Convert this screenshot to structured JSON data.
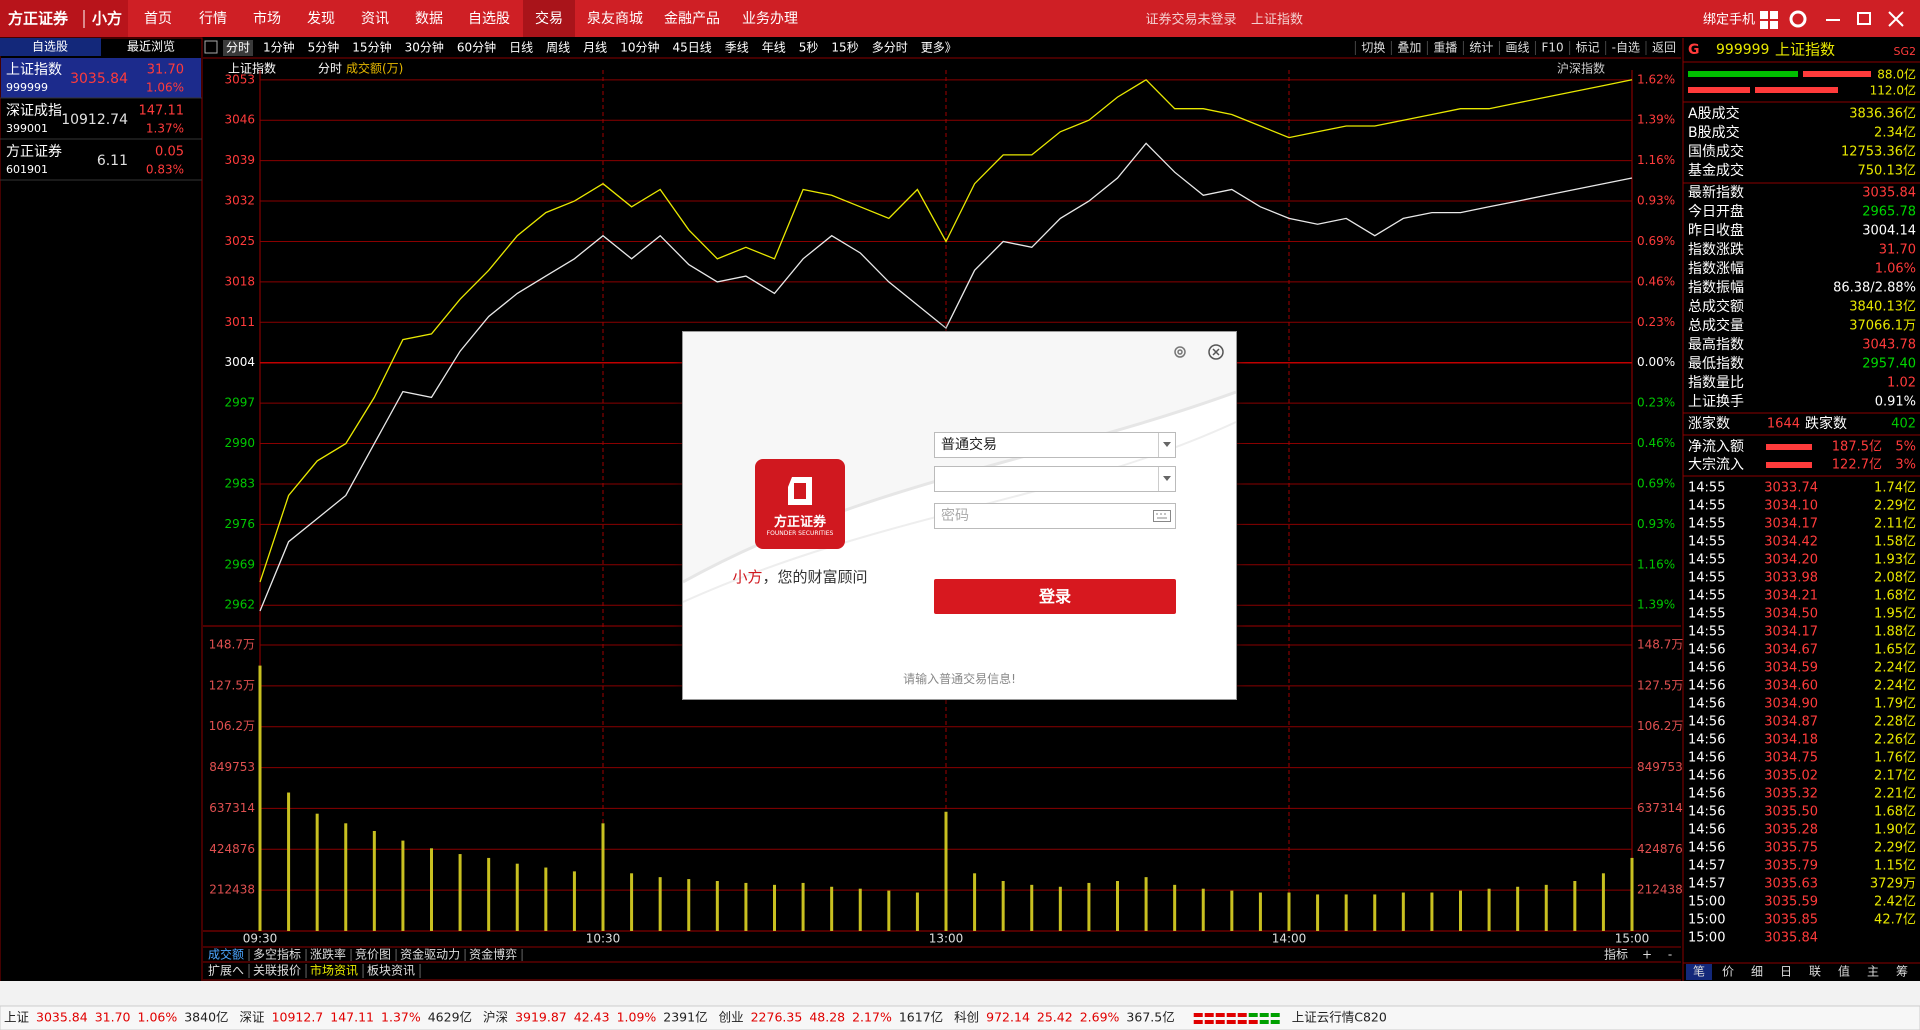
{
  "topbar": {
    "brand": "方正证券",
    "app": "小方",
    "menu": [
      "首页",
      "行情",
      "市场",
      "发现",
      "资讯",
      "数据",
      "自选股",
      "交易",
      "泉友商城",
      "金融产品",
      "业务办理"
    ],
    "login_status": "证券交易未登录",
    "index_name": "上证指数",
    "bind_phone": "绑定手机"
  },
  "watchlist": {
    "tabs": [
      "自选股",
      "最近浏览"
    ],
    "stocks": [
      {
        "name": "上证指数",
        "code": "999999",
        "price": "3035.84",
        "change": "31.70",
        "pct": "1.06%"
      },
      {
        "name": "深证成指",
        "code": "399001",
        "price": "10912.74",
        "change": "147.11",
        "pct": "1.37%"
      },
      {
        "name": "方正证券",
        "code": "601901",
        "price": "6.11",
        "change": "0.05",
        "pct": "0.83%"
      }
    ]
  },
  "toolbar": {
    "periods": [
      "分时",
      "1分钟",
      "5分钟",
      "15分钟",
      "30分钟",
      "60分钟",
      "日线",
      "周线",
      "月线",
      "10分钟",
      "45日线",
      "季线",
      "年线",
      "5秒",
      "15秒",
      "多分时",
      "更多》"
    ],
    "tools": [
      "切换",
      "叠加",
      "重播",
      "统计",
      "画线",
      "F10",
      "标记",
      "-自选",
      "返回"
    ]
  },
  "chart": {
    "index_name": "上证指数",
    "mode": "分时",
    "indicator": "成交额(万)",
    "market": "沪深指数",
    "price_ylim": [
      2958.4,
      3054.7
    ],
    "price_ticks": [
      3053,
      3046,
      3039,
      3032,
      3025,
      3018,
      3011,
      3004,
      2997,
      2990,
      2983,
      2976,
      2969,
      2962
    ],
    "pct_labels": [
      "1.62%",
      "1.39%",
      "1.16%",
      "0.93%",
      "0.69%",
      "0.46%",
      "0.23%",
      "0.00%",
      "0.23%",
      "0.46%",
      "0.69%",
      "0.93%",
      "1.16%",
      "1.39%"
    ],
    "volume_ylim": [
      0,
      1585900
    ],
    "volume_ticks": [
      {
        "value": 1487067,
        "label": "148.7万"
      },
      {
        "value": 1274629,
        "label": "127.5万"
      },
      {
        "value": 1062191,
        "label": "106.2万"
      },
      849753,
      637314,
      424876,
      212438
    ],
    "xlim": [
      0,
      240
    ],
    "time_ticks": [
      {
        "value": 0,
        "label": "09:30"
      },
      {
        "value": 60,
        "label": "10:30"
      },
      {
        "value": 120,
        "label": "13:00"
      },
      {
        "value": 180,
        "label": "14:00"
      },
      {
        "value": 240,
        "label": "15:00"
      }
    ],
    "x": [
      0,
      5,
      10,
      15,
      20,
      25,
      30,
      35,
      40,
      45,
      50,
      55,
      60,
      65,
      70,
      75,
      80,
      85,
      90,
      95,
      100,
      105,
      110,
      115,
      120,
      125,
      130,
      135,
      140,
      145,
      150,
      155,
      160,
      165,
      170,
      175,
      180,
      185,
      190,
      195,
      200,
      205,
      210,
      215,
      220,
      225,
      230,
      235,
      240
    ],
    "price": [
      2961,
      2973,
      2977,
      2981,
      2990,
      2999,
      2998,
      3006,
      3012,
      3016,
      3019,
      3022,
      3026,
      3022,
      3026,
      3021,
      3018,
      3019,
      3016,
      3022,
      3026,
      3023,
      3018,
      3014,
      3010,
      3020,
      3025,
      3024,
      3029,
      3032,
      3036,
      3042,
      3037,
      3033,
      3034,
      3031,
      3029,
      3028,
      3029,
      3026,
      3029,
      3030,
      3030,
      3031,
      3032,
      3033,
      3034,
      3035,
      3036
    ],
    "leading": [
      2966,
      2981,
      2987,
      2990,
      2998,
      3008,
      3009,
      3015,
      3020,
      3026,
      3030,
      3032,
      3035,
      3031,
      3034,
      3027,
      3022,
      3024,
      3022,
      3034,
      3033,
      3031,
      3029,
      3034,
      3025,
      3035,
      3040,
      3040,
      3044,
      3046,
      3050,
      3053,
      3048,
      3048,
      3047,
      3045,
      3043,
      3044,
      3045,
      3045,
      3046,
      3047,
      3048,
      3048,
      3049,
      3050,
      3051,
      3052,
      3053
    ],
    "volume": [
      1380000,
      720000,
      610000,
      560000,
      520000,
      470000,
      430000,
      400000,
      380000,
      350000,
      330000,
      310000,
      560000,
      300000,
      280000,
      270000,
      260000,
      250000,
      240000,
      250000,
      230000,
      220000,
      210000,
      200000,
      620000,
      300000,
      260000,
      240000,
      230000,
      250000,
      260000,
      280000,
      240000,
      220000,
      210000,
      200000,
      200000,
      190000,
      190000,
      190000,
      200000,
      200000,
      210000,
      220000,
      230000,
      240000,
      260000,
      300000,
      380000
    ]
  },
  "chart_tabs": {
    "indicators": [
      "成交额",
      "多空指标",
      "涨跌率",
      "竞价图",
      "资金驱动力",
      "资金博弈"
    ],
    "extras": [
      "扩展へ",
      "关联报价",
      "市场资讯",
      "板块资讯"
    ],
    "controls": [
      "指标",
      "+",
      "-"
    ]
  },
  "quote": {
    "flag": "G",
    "code": "999999",
    "name": "上证指数",
    "tag": "SG2",
    "bar_values": [
      "88.0亿",
      "112.0亿"
    ],
    "turnover": [
      {
        "label": "A股成交",
        "value": "3836.36亿",
        "color": "#e8e800"
      },
      {
        "label": "B股成交",
        "value": "2.34亿",
        "color": "#e8e800"
      },
      {
        "label": "国债成交",
        "value": "12753.36亿",
        "color": "#e8e800"
      },
      {
        "label": "基金成交",
        "value": "750.13亿",
        "color": "#e8e800"
      }
    ],
    "stats": [
      {
        "label": "最新指数",
        "value": "3035.84",
        "color": "#ff3b3b"
      },
      {
        "label": "今日开盘",
        "value": "2965.78",
        "color": "#00d800"
      },
      {
        "label": "昨日收盘",
        "value": "3004.14",
        "color": "#ffffff"
      },
      {
        "label": "指数涨跌",
        "value": "31.70",
        "color": "#ff3b3b"
      },
      {
        "label": "指数涨幅",
        "value": "1.06%",
        "color": "#ff3b3b"
      },
      {
        "label": "指数振幅",
        "value": "86.38/2.88%",
        "color": "#ffffff"
      },
      {
        "label": "总成交额",
        "value": "3840.13亿",
        "color": "#e8e800"
      },
      {
        "label": "总成交量",
        "value": "37066.1万",
        "color": "#e8e800"
      },
      {
        "label": "最高指数",
        "value": "3043.78",
        "color": "#ff3b3b"
      },
      {
        "label": "最低指数",
        "value": "2957.40",
        "color": "#00d800"
      },
      {
        "label": "指数量比",
        "value": "1.02",
        "color": "#ff3b3b"
      },
      {
        "label": "上证换手",
        "value": "0.91%",
        "color": "#ffffff"
      }
    ],
    "breadth": {
      "up_label": "涨家数",
      "up": "1644",
      "down_label": "跌家数",
      "down": "402"
    },
    "flows": [
      {
        "label": "净流入额",
        "value": "187.5亿",
        "pct": "5%"
      },
      {
        "label": "大宗流入",
        "value": "122.7亿",
        "pct": "3%"
      }
    ],
    "ticks": [
      [
        "14:55",
        "3033.74",
        "1.74亿"
      ],
      [
        "14:55",
        "3034.10",
        "2.29亿"
      ],
      [
        "14:55",
        "3034.17",
        "2.11亿"
      ],
      [
        "14:55",
        "3034.42",
        "1.58亿"
      ],
      [
        "14:55",
        "3034.20",
        "1.93亿"
      ],
      [
        "14:55",
        "3033.98",
        "2.08亿"
      ],
      [
        "14:55",
        "3034.21",
        "1.68亿"
      ],
      [
        "14:55",
        "3034.50",
        "1.95亿"
      ],
      [
        "14:55",
        "3034.17",
        "1.88亿"
      ],
      [
        "14:56",
        "3034.67",
        "1.65亿"
      ],
      [
        "14:56",
        "3034.59",
        "2.24亿"
      ],
      [
        "14:56",
        "3034.60",
        "2.24亿"
      ],
      [
        "14:56",
        "3034.90",
        "1.79亿"
      ],
      [
        "14:56",
        "3034.87",
        "2.28亿"
      ],
      [
        "14:56",
        "3034.18",
        "2.26亿"
      ],
      [
        "14:56",
        "3034.75",
        "1.76亿"
      ],
      [
        "14:56",
        "3035.02",
        "2.17亿"
      ],
      [
        "14:56",
        "3035.32",
        "2.21亿"
      ],
      [
        "14:56",
        "3035.50",
        "1.68亿"
      ],
      [
        "14:56",
        "3035.28",
        "1.90亿"
      ],
      [
        "14:56",
        "3035.75",
        "2.29亿"
      ],
      [
        "14:57",
        "3035.79",
        "1.15亿"
      ],
      [
        "14:57",
        "3035.63",
        "3729万"
      ],
      [
        "15:00",
        "3035.59",
        "2.42亿"
      ],
      [
        "15:00",
        "3035.85",
        "42.7亿"
      ],
      [
        "15:00",
        "3035.84"
      ]
    ],
    "tabs": [
      "笔",
      "价",
      "细",
      "日",
      "联",
      "值",
      "主",
      "筹"
    ]
  },
  "dialog": {
    "logo_name": "方正证券",
    "logo_en": "FOUNDER SECURITIES",
    "tagline_name": "小方",
    "tagline_rest": "，您的财富顾问",
    "account_type": "普通交易",
    "password_placeholder": "密码",
    "login": "登录",
    "hint": "请输入普通交易信息!"
  },
  "statusbar": {
    "indices": [
      {
        "name": "上证",
        "price": "3035.84",
        "change": "31.70",
        "pct": "1.06%",
        "amount": "3840亿"
      },
      {
        "name": "深证",
        "price": "10912.7",
        "change": "147.11",
        "pct": "1.37%",
        "amount": "4629亿"
      },
      {
        "name": "沪深",
        "price": "3919.87",
        "change": "42.43",
        "pct": "1.09%",
        "amount": "2391亿"
      },
      {
        "name": "创业",
        "price": "2276.35",
        "change": "48.28",
        "pct": "2.17%",
        "amount": "1617亿"
      },
      {
        "name": "科创",
        "price": "972.14",
        "change": "25.42",
        "pct": "2.69%",
        "amount": "367.5亿"
      }
    ],
    "cloud": "上证云行情C820"
  }
}
